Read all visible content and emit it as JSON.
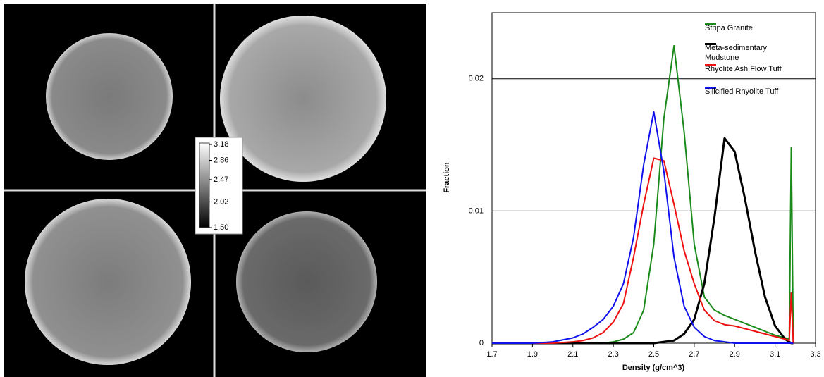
{
  "chart_data": [
    {
      "type": "colorbar",
      "clim": [
        1.5,
        3.18
      ],
      "ticks": [
        3.18,
        2.86,
        2.47,
        2.02,
        {
          "value": 1.5,
          "label": "1.50"
        }
      ]
    },
    {
      "type": "line",
      "xlabel": "Density (g/cm^3)",
      "ylabel": "Fraction",
      "x": [
        1.7,
        1.8,
        1.9,
        2.0,
        2.1,
        2.15,
        2.2,
        2.25,
        2.3,
        2.35,
        2.4,
        2.45,
        2.5,
        2.55,
        2.6,
        2.65,
        2.7,
        2.75,
        2.8,
        2.85,
        2.9,
        2.95,
        3.0,
        3.05,
        3.1,
        3.15,
        3.17,
        3.18,
        3.19
      ],
      "xlim": [
        1.7,
        3.3
      ],
      "xticks": [
        1.7,
        1.9,
        2.1,
        2.3,
        2.5,
        2.7,
        2.9,
        3.1,
        3.3
      ],
      "ylim": [
        0,
        0.025
      ],
      "yticks": [
        0,
        0.01,
        0.02
      ],
      "grid": true,
      "legend": "top-right",
      "series": [
        {
          "name": "Stripa Granite",
          "color": "#1a8a1a",
          "values": [
            0,
            0,
            0,
            0,
            0,
            0,
            0,
            0,
            0.0001,
            0.0003,
            0.0008,
            0.0025,
            0.0075,
            0.017,
            0.0225,
            0.016,
            0.0075,
            0.0035,
            0.0025,
            0.0021,
            0.0018,
            0.0015,
            0.0012,
            0.0009,
            0.0006,
            0.0004,
            0.0003,
            0.0148,
            0
          ]
        },
        {
          "name": "Meta-sedimentary Mudstone",
          "color": "#000000",
          "values": [
            0,
            0,
            0,
            0,
            0,
            0,
            0,
            0,
            0,
            0,
            0,
            0,
            0,
            0.0001,
            0.0002,
            0.0007,
            0.0018,
            0.0045,
            0.0095,
            0.0155,
            0.0145,
            0.011,
            0.007,
            0.0035,
            0.0013,
            0.0003,
            0.0001,
            0,
            0
          ]
        },
        {
          "name": "Rhyolite Ash Flow Tuff",
          "color": "#ee1111",
          "values": [
            0,
            0,
            0,
            0,
            0.0001,
            0.0002,
            0.0004,
            0.0008,
            0.0016,
            0.003,
            0.0065,
            0.0105,
            0.014,
            0.0138,
            0.0105,
            0.007,
            0.0045,
            0.0025,
            0.0017,
            0.0014,
            0.0013,
            0.0011,
            0.0009,
            0.0007,
            0.0005,
            0.0003,
            0.0002,
            0.0038,
            0
          ]
        },
        {
          "name": "Silicified Rhyolite Tuff",
          "color": "#1111ee",
          "values": [
            0,
            0,
            0,
            0.0001,
            0.0004,
            0.0007,
            0.0012,
            0.0018,
            0.0028,
            0.0045,
            0.008,
            0.0135,
            0.0175,
            0.013,
            0.0065,
            0.0028,
            0.0012,
            0.0005,
            0.0002,
            0.0001,
            0,
            0,
            0,
            0,
            0,
            0,
            0,
            0,
            0
          ]
        }
      ]
    }
  ]
}
